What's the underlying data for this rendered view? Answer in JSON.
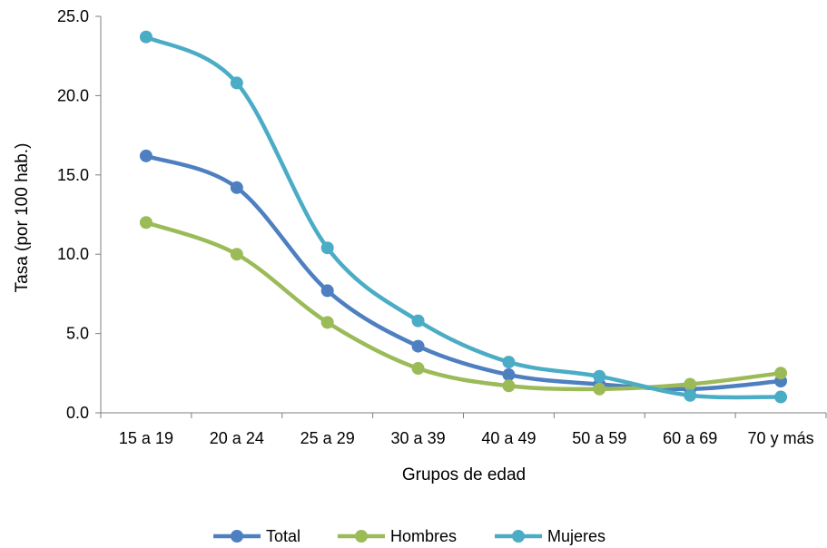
{
  "chart_data": {
    "type": "line",
    "title": "",
    "xlabel": "Grupos de edad",
    "ylabel": "Tasa (por 100 hab.)",
    "ylim": [
      0,
      25
    ],
    "yticks": [
      "0.0",
      "5.0",
      "10.0",
      "15.0",
      "20.0",
      "25.0"
    ],
    "grid": false,
    "smooth": true,
    "legend_position": "bottom",
    "categories": [
      "15 a 19",
      "20 a 24",
      "25 a 29",
      "30 a 39",
      "40 a 49",
      "50 a 59",
      "60 a 69",
      "70 y más"
    ],
    "series": [
      {
        "name": "Total",
        "color": "#4e7fc0",
        "values": [
          16.2,
          14.2,
          7.7,
          4.2,
          2.4,
          1.8,
          1.5,
          2.0
        ]
      },
      {
        "name": "Hombres",
        "color": "#9bbb59",
        "values": [
          12.0,
          10.0,
          5.7,
          2.8,
          1.7,
          1.5,
          1.8,
          2.5
        ]
      },
      {
        "name": "Mujeres",
        "color": "#4bacc6",
        "values": [
          23.7,
          20.8,
          10.4,
          5.8,
          3.2,
          2.3,
          1.1,
          1.0
        ]
      }
    ]
  }
}
